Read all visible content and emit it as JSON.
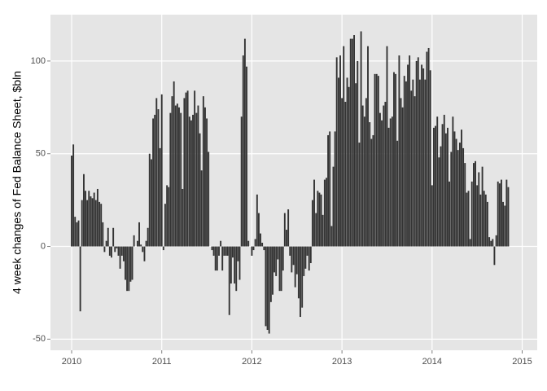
{
  "chart_data": {
    "type": "bar",
    "y_label": "4 week changes of Fed Balance Sheet, $bln",
    "color": "#333333",
    "grid": true,
    "xlim": [
      2009.765,
      2015.167
    ],
    "xticks": [
      2010,
      2011,
      2012,
      2013,
      2014,
      2015
    ],
    "ylim": [
      -56,
      125
    ],
    "yticks": [
      -50,
      0,
      50,
      100
    ],
    "x": [
      2010,
      2010.019,
      2010.038,
      2010.058,
      2010.077,
      2010.096,
      2010.115,
      2010.135,
      2010.154,
      2010.173,
      2010.192,
      2010.212,
      2010.231,
      2010.25,
      2010.269,
      2010.288,
      2010.308,
      2010.327,
      2010.346,
      2010.365,
      2010.385,
      2010.404,
      2010.423,
      2010.442,
      2010.462,
      2010.481,
      2010.5,
      2010.519,
      2010.538,
      2010.558,
      2010.577,
      2010.596,
      2010.615,
      2010.635,
      2010.654,
      2010.673,
      2010.692,
      2010.712,
      2010.731,
      2010.75,
      2010.769,
      2010.788,
      2010.808,
      2010.827,
      2010.846,
      2010.865,
      2010.885,
      2010.904,
      2010.923,
      2010.942,
      2010.962,
      2010.981,
      2011,
      2011.019,
      2011.038,
      2011.058,
      2011.077,
      2011.096,
      2011.115,
      2011.135,
      2011.154,
      2011.173,
      2011.192,
      2011.212,
      2011.231,
      2011.25,
      2011.269,
      2011.288,
      2011.308,
      2011.327,
      2011.346,
      2011.365,
      2011.385,
      2011.404,
      2011.423,
      2011.442,
      2011.462,
      2011.481,
      2011.5,
      2011.519,
      2011.538,
      2011.558,
      2011.577,
      2011.596,
      2011.615,
      2011.635,
      2011.654,
      2011.673,
      2011.692,
      2011.712,
      2011.731,
      2011.75,
      2011.769,
      2011.788,
      2011.808,
      2011.827,
      2011.846,
      2011.865,
      2011.885,
      2011.904,
      2011.923,
      2011.942,
      2011.962,
      2011.981,
      2012,
      2012.019,
      2012.038,
      2012.058,
      2012.077,
      2012.096,
      2012.115,
      2012.135,
      2012.154,
      2012.173,
      2012.192,
      2012.212,
      2012.231,
      2012.25,
      2012.269,
      2012.288,
      2012.308,
      2012.327,
      2012.346,
      2012.365,
      2012.385,
      2012.404,
      2012.423,
      2012.442,
      2012.462,
      2012.481,
      2012.5,
      2012.519,
      2012.538,
      2012.558,
      2012.577,
      2012.596,
      2012.615,
      2012.635,
      2012.654,
      2012.673,
      2012.692,
      2012.712,
      2012.731,
      2012.75,
      2012.769,
      2012.788,
      2012.808,
      2012.827,
      2012.846,
      2012.865,
      2012.885,
      2012.904,
      2012.923,
      2012.942,
      2012.962,
      2012.981,
      2013,
      2013.019,
      2013.038,
      2013.058,
      2013.077,
      2013.096,
      2013.115,
      2013.135,
      2013.154,
      2013.173,
      2013.192,
      2013.212,
      2013.231,
      2013.25,
      2013.269,
      2013.288,
      2013.308,
      2013.327,
      2013.346,
      2013.365,
      2013.385,
      2013.404,
      2013.423,
      2013.442,
      2013.462,
      2013.481,
      2013.5,
      2013.519,
      2013.538,
      2013.558,
      2013.577,
      2013.596,
      2013.615,
      2013.635,
      2013.654,
      2013.673,
      2013.692,
      2013.712,
      2013.731,
      2013.75,
      2013.769,
      2013.788,
      2013.808,
      2013.827,
      2013.846,
      2013.865,
      2013.885,
      2013.904,
      2013.923,
      2013.942,
      2013.962,
      2013.981,
      2014,
      2014.019,
      2014.038,
      2014.058,
      2014.077,
      2014.096,
      2014.115,
      2014.135,
      2014.154,
      2014.173,
      2014.192,
      2014.212,
      2014.231,
      2014.25,
      2014.269,
      2014.288,
      2014.308,
      2014.327,
      2014.346,
      2014.365,
      2014.385,
      2014.404,
      2014.423,
      2014.442,
      2014.462,
      2014.481,
      2014.5,
      2014.519,
      2014.538,
      2014.558,
      2014.577,
      2014.596,
      2014.615,
      2014.635,
      2014.654,
      2014.673,
      2014.692,
      2014.712,
      2014.731,
      2014.75,
      2014.769,
      2014.788,
      2014.808,
      2014.827,
      2014.846
    ],
    "values": [
      49,
      55,
      16,
      13,
      14,
      -35,
      25,
      39,
      30,
      25,
      30,
      27,
      26,
      29,
      25,
      31,
      24,
      23,
      13,
      -3,
      3,
      10,
      -5,
      -6,
      10,
      -3,
      -1,
      -5,
      -12,
      -5,
      -8,
      -18,
      -24,
      -24,
      -19,
      -18,
      6,
      0,
      3,
      13,
      1,
      -3,
      -8,
      3,
      10,
      50,
      47,
      69,
      71,
      80,
      74,
      53,
      82,
      -2,
      23,
      33,
      32,
      72,
      81,
      89,
      76,
      77,
      75,
      72,
      31,
      80,
      83,
      84,
      70,
      68,
      71,
      84,
      72,
      76,
      61,
      41,
      81,
      75,
      69,
      51,
      0,
      -2,
      -5,
      -13,
      -13,
      -5,
      3,
      -13,
      -5,
      -5,
      -5,
      -37,
      -20,
      -6,
      -20,
      -24,
      -8,
      -18,
      70,
      103,
      112,
      97,
      3,
      0,
      -5,
      -2,
      4,
      28,
      18,
      7,
      2,
      -2,
      -43,
      -45,
      -47,
      -30,
      -26,
      -14,
      -16,
      -7,
      -24,
      -24,
      -13,
      18,
      9,
      20,
      -5,
      -14,
      -10,
      -22,
      -15,
      -28,
      -38,
      -33,
      -16,
      -12,
      -5,
      -13,
      -9,
      25,
      36,
      18,
      30,
      29,
      28,
      17,
      36,
      37,
      60,
      62,
      11,
      43,
      62,
      102,
      91,
      103,
      80,
      108,
      78,
      91,
      86,
      112,
      112,
      114,
      88,
      100,
      56,
      116,
      76,
      70,
      80,
      108,
      67,
      58,
      60,
      93,
      93,
      92,
      72,
      68,
      76,
      78,
      108,
      64,
      69,
      70,
      94,
      93,
      57,
      103,
      80,
      75,
      92,
      89,
      98,
      103,
      84,
      90,
      81,
      100,
      102,
      90,
      98,
      96,
      90,
      105,
      107,
      95,
      33,
      64,
      65,
      70,
      48,
      54,
      66,
      71,
      61,
      64,
      35,
      51,
      70,
      62,
      58,
      52,
      56,
      63,
      53,
      45,
      29,
      30,
      4,
      35,
      45,
      46,
      33,
      40,
      28,
      43,
      30,
      28,
      24,
      5,
      3,
      4,
      -10,
      6,
      35,
      34,
      36,
      24,
      22,
      36,
      32
    ]
  }
}
